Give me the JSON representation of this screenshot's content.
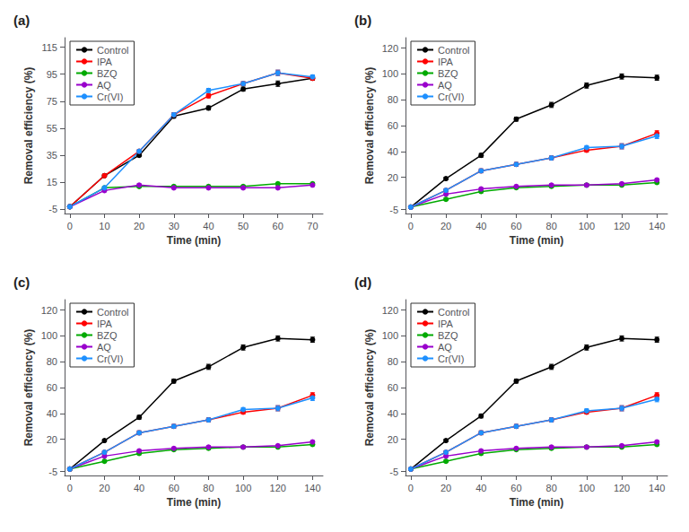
{
  "chart_data": [
    {
      "type": "line",
      "title": "(a)",
      "xlabel": "Time (min)",
      "ylabel": "Removal efficiency (%)",
      "x": [
        0,
        10,
        20,
        30,
        40,
        50,
        60,
        70
      ],
      "xlim": [
        -1.5,
        73
      ],
      "xticks": [
        0,
        10,
        20,
        30,
        40,
        50,
        60,
        70
      ],
      "ylim": [
        -8,
        122
      ],
      "yticks": [
        -5,
        15,
        35,
        55,
        75,
        95,
        115
      ],
      "grid": false,
      "legend": "upper left",
      "marker": "circle",
      "series": [
        {
          "name": "Control",
          "color": "#000000",
          "values": [
            -3,
            20,
            35,
            64,
            70,
            84,
            88,
            92
          ],
          "errors": [
            0,
            1,
            1,
            1.5,
            1.5,
            1.5,
            2,
            1.5
          ]
        },
        {
          "name": "IPA",
          "color": "#ff0000",
          "values": [
            -3,
            20,
            38,
            65,
            79,
            88,
            96,
            92
          ],
          "errors": [
            0,
            1,
            1,
            1.5,
            1.5,
            1.5,
            2,
            1.5
          ]
        },
        {
          "name": "BZQ",
          "color": "#00aa00",
          "values": [
            -3,
            11,
            12,
            12,
            12,
            12,
            14,
            14
          ],
          "errors": [
            0,
            1,
            1,
            1,
            1,
            1,
            1,
            1
          ]
        },
        {
          "name": "AQ",
          "color": "#9900cc",
          "values": [
            -3,
            9,
            13,
            11,
            11,
            11,
            11,
            13
          ],
          "errors": [
            0,
            1,
            1,
            1,
            1,
            1,
            1,
            1
          ]
        },
        {
          "name": "Cr(VI)",
          "color": "#1e90ff",
          "values": [
            -3,
            11,
            38,
            65,
            83,
            88,
            96,
            93
          ],
          "errors": [
            0,
            1,
            1,
            1.5,
            1.5,
            1.5,
            2,
            1.5
          ]
        }
      ]
    },
    {
      "type": "line",
      "title": "(b)",
      "xlabel": "Time (min)",
      "ylabel": "Removal efficiency (%)",
      "x": [
        0,
        20,
        40,
        60,
        80,
        100,
        120,
        140
      ],
      "xlim": [
        -3,
        146
      ],
      "xticks": [
        0,
        20,
        40,
        60,
        80,
        100,
        120,
        140
      ],
      "ylim": [
        -8,
        128
      ],
      "yticks": [
        -5,
        20,
        40,
        60,
        80,
        100,
        120
      ],
      "grid": false,
      "legend": "upper left",
      "marker": "circle",
      "series": [
        {
          "name": "Control",
          "color": "#000000",
          "values": [
            -3,
            19,
            37,
            65,
            76,
            91,
            98,
            97
          ],
          "errors": [
            0,
            1,
            1.5,
            1.5,
            2,
            2,
            2,
            2
          ]
        },
        {
          "name": "IPA",
          "color": "#ff0000",
          "values": [
            -3,
            10,
            25,
            30,
            35,
            41,
            44,
            54
          ],
          "errors": [
            0,
            1,
            1.5,
            1.5,
            1.5,
            1.5,
            2,
            2
          ]
        },
        {
          "name": "BZQ",
          "color": "#00aa00",
          "values": [
            -3,
            3,
            9,
            12,
            13,
            14,
            14,
            16
          ],
          "errors": [
            0,
            1,
            1,
            1,
            1,
            1,
            1,
            1
          ]
        },
        {
          "name": "AQ",
          "color": "#9900cc",
          "values": [
            -3,
            7,
            11,
            13,
            14,
            14,
            15,
            18
          ],
          "errors": [
            0,
            1,
            1,
            1,
            1,
            1,
            1,
            1
          ]
        },
        {
          "name": "Cr(VI)",
          "color": "#1e90ff",
          "values": [
            -3,
            10,
            25,
            30,
            35,
            43,
            44,
            52
          ],
          "errors": [
            0,
            1,
            1.5,
            1.5,
            1.5,
            1.5,
            2,
            2
          ]
        }
      ]
    },
    {
      "type": "line",
      "title": "(c)",
      "xlabel": "Time (min)",
      "ylabel": "Removal efficiency (%)",
      "x": [
        0,
        20,
        40,
        60,
        80,
        100,
        120,
        140
      ],
      "xlim": [
        -3,
        146
      ],
      "xticks": [
        0,
        20,
        40,
        60,
        80,
        100,
        120,
        140
      ],
      "ylim": [
        -8,
        128
      ],
      "yticks": [
        -5,
        20,
        40,
        60,
        80,
        100,
        120
      ],
      "grid": false,
      "legend": "upper left",
      "marker": "circle",
      "series": [
        {
          "name": "Control",
          "color": "#000000",
          "values": [
            -3,
            19,
            37,
            65,
            76,
            91,
            98,
            97
          ],
          "errors": [
            0,
            1,
            1.5,
            1.5,
            2,
            2,
            2,
            2
          ]
        },
        {
          "name": "IPA",
          "color": "#ff0000",
          "values": [
            -3,
            10,
            25,
            30,
            35,
            41,
            44,
            54
          ],
          "errors": [
            0,
            1,
            1.5,
            1.5,
            1.5,
            1.5,
            2,
            2
          ]
        },
        {
          "name": "BZQ",
          "color": "#00aa00",
          "values": [
            -3,
            3,
            9,
            12,
            13,
            14,
            14,
            16
          ],
          "errors": [
            0,
            1,
            1,
            1,
            1,
            1,
            1,
            1
          ]
        },
        {
          "name": "AQ",
          "color": "#9900cc",
          "values": [
            -3,
            7,
            11,
            13,
            14,
            14,
            15,
            18
          ],
          "errors": [
            0,
            1,
            1,
            1,
            1,
            1,
            1,
            1
          ]
        },
        {
          "name": "Cr(VI)",
          "color": "#1e90ff",
          "values": [
            -3,
            10,
            25,
            30,
            35,
            43,
            44,
            52
          ],
          "errors": [
            0,
            1,
            1.5,
            1.5,
            1.5,
            1.5,
            2,
            2
          ]
        }
      ]
    },
    {
      "type": "line",
      "title": "(d)",
      "xlabel": "Time (min)",
      "ylabel": "Removal efficiency (%)",
      "x": [
        0,
        20,
        40,
        60,
        80,
        100,
        120,
        140
      ],
      "xlim": [
        -3,
        146
      ],
      "xticks": [
        0,
        20,
        40,
        60,
        80,
        100,
        120,
        140
      ],
      "ylim": [
        -8,
        128
      ],
      "yticks": [
        -5,
        20,
        40,
        60,
        80,
        100,
        120
      ],
      "grid": false,
      "legend": "upper left",
      "marker": "circle",
      "series": [
        {
          "name": "Control",
          "color": "#000000",
          "values": [
            -3,
            19,
            38,
            65,
            76,
            91,
            98,
            97
          ],
          "errors": [
            0,
            1,
            1.5,
            1.5,
            2,
            2,
            2,
            2
          ]
        },
        {
          "name": "IPA",
          "color": "#ff0000",
          "values": [
            -3,
            10,
            25,
            30,
            35,
            41,
            44,
            54
          ],
          "errors": [
            0,
            1,
            1.5,
            1.5,
            1.5,
            1.5,
            2,
            2
          ]
        },
        {
          "name": "BZQ",
          "color": "#00aa00",
          "values": [
            -3,
            3,
            9,
            12,
            13,
            14,
            14,
            16
          ],
          "errors": [
            0,
            1,
            1,
            1,
            1,
            1,
            1,
            1
          ]
        },
        {
          "name": "AQ",
          "color": "#9900cc",
          "values": [
            -3,
            7,
            11,
            13,
            14,
            14,
            15,
            18
          ],
          "errors": [
            0,
            1,
            1,
            1,
            1,
            1,
            1,
            1
          ]
        },
        {
          "name": "Cr(VI)",
          "color": "#1e90ff",
          "values": [
            -3,
            10,
            25,
            30,
            35,
            42,
            44,
            51
          ],
          "errors": [
            0,
            1,
            1.5,
            1.5,
            1.5,
            1.5,
            2,
            2
          ]
        }
      ]
    }
  ]
}
